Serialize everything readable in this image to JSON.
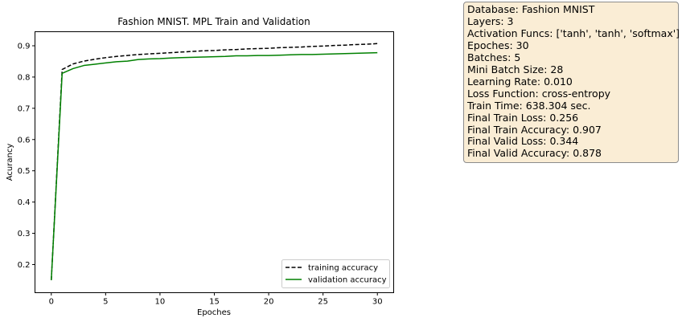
{
  "chart_data": {
    "type": "line",
    "title": "Fashion MNIST. MPL Train and Validation",
    "xlabel": "Epoches",
    "ylabel": "Acurancy",
    "xlim": [
      -1.5,
      31.5
    ],
    "ylim": [
      0.11,
      0.945
    ],
    "xticks": [
      "0",
      "5",
      "10",
      "15",
      "20",
      "25",
      "30"
    ],
    "yticks": [
      "0.2",
      "0.3",
      "0.4",
      "0.5",
      "0.6",
      "0.7",
      "0.8",
      "0.9"
    ],
    "grid": false,
    "legend_position": "lower-right",
    "x": [
      0,
      1,
      2,
      3,
      4,
      5,
      6,
      7,
      8,
      9,
      10,
      11,
      12,
      13,
      14,
      15,
      16,
      17,
      18,
      19,
      20,
      21,
      22,
      23,
      24,
      25,
      26,
      27,
      28,
      29,
      30
    ],
    "series": [
      {
        "name": "training accuracy",
        "color": "#000000",
        "style": "dashed",
        "values": [
          0.15,
          0.824,
          0.842,
          0.851,
          0.857,
          0.862,
          0.866,
          0.869,
          0.872,
          0.874,
          0.876,
          0.878,
          0.88,
          0.882,
          0.884,
          0.885,
          0.887,
          0.888,
          0.89,
          0.891,
          0.892,
          0.894,
          0.895,
          0.896,
          0.898,
          0.899,
          0.901,
          0.902,
          0.904,
          0.905,
          0.907
        ]
      },
      {
        "name": "validation accuracy",
        "color": "#008000",
        "style": "solid",
        "values": [
          0.15,
          0.812,
          0.827,
          0.837,
          0.841,
          0.845,
          0.849,
          0.851,
          0.856,
          0.858,
          0.859,
          0.861,
          0.862,
          0.863,
          0.864,
          0.865,
          0.866,
          0.868,
          0.868,
          0.869,
          0.869,
          0.87,
          0.871,
          0.872,
          0.872,
          0.873,
          0.874,
          0.875,
          0.876,
          0.877,
          0.878
        ]
      }
    ]
  },
  "info_box": {
    "lines": [
      "Database: Fashion MNIST",
      "Layers: 3",
      "Activation Funcs: ['tanh', 'tanh', 'softmax']",
      "Epoches: 30",
      "Batches: 5",
      "Mini Batch Size: 28",
      "Learning Rate: 0.010",
      "Loss Function: cross-entropy",
      "Train Time: 638.304 sec.",
      "Final Train Loss: 0.256",
      "Final Train Accuracy: 0.907",
      "Final Valid Loss: 0.344",
      "Final Valid Accuracy: 0.878"
    ]
  }
}
